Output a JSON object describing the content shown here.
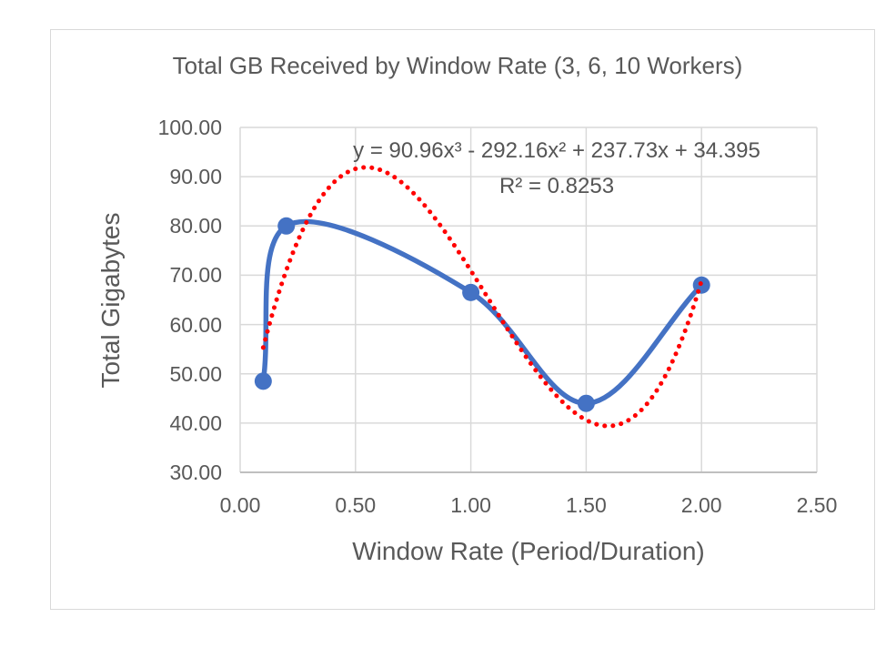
{
  "chart_data": {
    "type": "line",
    "title": "Total GB Received by Window Rate (3, 6, 10 Workers)",
    "xlabel": "Window Rate (Period/Duration)",
    "ylabel": "Total Gigabytes",
    "xlim": [
      0,
      2.5
    ],
    "ylim": [
      30,
      100
    ],
    "x_ticks": [
      "0.00",
      "0.50",
      "1.00",
      "1.50",
      "2.00",
      "2.50"
    ],
    "y_ticks": [
      "100.00",
      "90.00",
      "80.00",
      "70.00",
      "60.00",
      "50.00",
      "40.00",
      "30.00"
    ],
    "grid": true,
    "legend": "none",
    "series": [
      {
        "style": "smooth-line-with-markers",
        "color": "#4472C4",
        "points": [
          [
            0.1,
            48.5
          ],
          [
            0.2,
            80.0
          ],
          [
            1.0,
            66.5
          ],
          [
            1.5,
            44.0
          ],
          [
            2.0,
            68.0
          ]
        ]
      }
    ],
    "trendline": {
      "type": "polynomial",
      "order": 3,
      "coefficients": [
        90.96,
        -292.16,
        237.73,
        34.395
      ],
      "equation_label": "y = 90.96x³ - 292.16x² + 237.73x + 34.395",
      "r_squared_label": "R² = 0.8253",
      "color": "#FF0000",
      "style": "dotted",
      "x_range": [
        0.1,
        2.0
      ]
    }
  },
  "colors": {
    "series_blue": "#4472C4",
    "trendline_red": "#FF0000",
    "gridline": "#D9D9D9",
    "axis_line": "#BFBFBF",
    "text_gray": "#595959",
    "frame_border": "#D9D9D9",
    "background": "#FFFFFF"
  }
}
